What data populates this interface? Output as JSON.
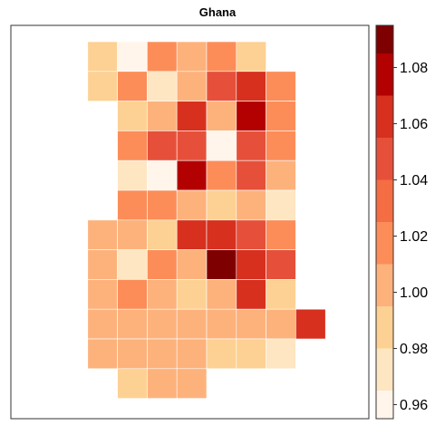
{
  "chart_data": {
    "type": "heatmap",
    "title": "Ghana",
    "xlabel": "",
    "ylabel": "",
    "colorbar": {
      "range": [
        0.955,
        1.095
      ],
      "ticks": [
        0.96,
        0.98,
        1.0,
        1.02,
        1.04,
        1.06,
        1.08
      ],
      "tick_labels": [
        "0.96",
        "0.98",
        "1.00",
        "1.02",
        "1.04",
        "1.06",
        "1.08"
      ],
      "bins": [
        {
          "from": 0.955,
          "to": 0.965,
          "color": "#FFF5EB"
        },
        {
          "from": 0.965,
          "to": 0.98,
          "color": "#FEE6C2"
        },
        {
          "from": 0.98,
          "to": 0.995,
          "color": "#FDD193"
        },
        {
          "from": 0.995,
          "to": 1.01,
          "color": "#FDB27C"
        },
        {
          "from": 1.01,
          "to": 1.025,
          "color": "#FC8D59"
        },
        {
          "from": 1.025,
          "to": 1.04,
          "color": "#F46D43"
        },
        {
          "from": 1.04,
          "to": 1.055,
          "color": "#E6503A"
        },
        {
          "from": 1.055,
          "to": 1.07,
          "color": "#D7301F"
        },
        {
          "from": 1.07,
          "to": 1.085,
          "color": "#B30000"
        },
        {
          "from": 1.085,
          "to": 1.095,
          "color": "#7F0000"
        }
      ]
    },
    "columns": 8,
    "rows": [
      [
        null,
        0.99,
        0.96,
        1.02,
        1.005,
        1.02,
        0.99,
        null,
        null
      ],
      [
        null,
        0.99,
        1.02,
        0.975,
        1.005,
        1.045,
        1.06,
        1.02,
        null
      ],
      [
        null,
        null,
        0.99,
        1.005,
        1.06,
        1.005,
        1.075,
        1.02,
        null
      ],
      [
        null,
        null,
        1.02,
        1.045,
        1.045,
        0.96,
        1.045,
        1.02,
        null
      ],
      [
        null,
        null,
        0.975,
        0.96,
        1.075,
        1.02,
        1.045,
        1.005,
        null
      ],
      [
        null,
        null,
        1.02,
        1.02,
        1.005,
        0.99,
        1.005,
        0.975,
        null
      ],
      [
        null,
        1.005,
        1.005,
        0.99,
        1.06,
        1.06,
        1.045,
        1.02,
        null
      ],
      [
        null,
        1.005,
        0.975,
        1.02,
        1.005,
        1.09,
        1.06,
        1.045,
        null
      ],
      [
        null,
        1.005,
        1.02,
        1.005,
        0.99,
        1.005,
        1.06,
        0.99,
        null
      ],
      [
        null,
        1.005,
        1.005,
        1.005,
        1.005,
        1.005,
        1.005,
        1.005,
        1.06
      ],
      [
        null,
        1.005,
        1.005,
        1.005,
        1.005,
        0.99,
        0.99,
        0.975,
        null
      ],
      [
        null,
        null,
        0.99,
        1.005,
        1.005,
        null,
        null,
        null,
        null
      ]
    ]
  }
}
